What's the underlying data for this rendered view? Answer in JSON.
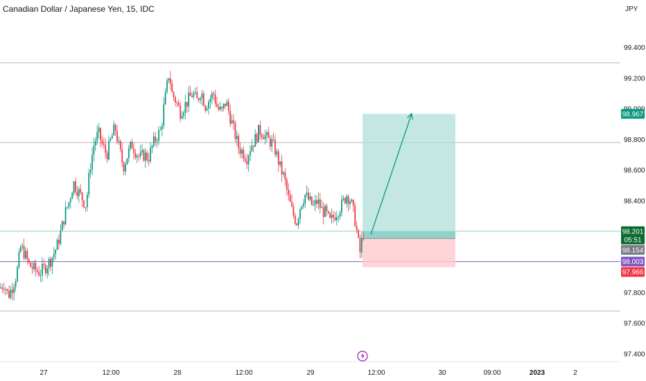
{
  "header": {
    "title": "Canadian Dollar / Japanese Yen, 15, IDC"
  },
  "axis": {
    "currency": "JPY"
  },
  "chart_data": {
    "type": "candlestick",
    "symbol": "CADJPY",
    "interval": "15",
    "ylim": [
      97.35,
      99.62
    ],
    "y_ticks": [
      "99.400",
      "99.200",
      "99.000",
      "98.800",
      "98.600",
      "98.400",
      "97.800",
      "97.600",
      "97.400"
    ],
    "x_ticks": [
      {
        "label": "27",
        "bold": false
      },
      {
        "label": "12:00",
        "bold": false
      },
      {
        "label": "28",
        "bold": false
      },
      {
        "label": "12:00",
        "bold": false
      },
      {
        "label": "29",
        "bold": false
      },
      {
        "label": "12:00",
        "bold": false
      },
      {
        "label": "30",
        "bold": false
      },
      {
        "label": "09:00",
        "bold": false
      },
      {
        "label": "2023",
        "bold": true
      },
      {
        "label": "2",
        "bold": false
      }
    ],
    "horizontal_lines": [
      {
        "price": 99.3,
        "color": "#b2b5be"
      },
      {
        "price": 98.78,
        "color": "#b2b5be"
      },
      {
        "price": 98.201,
        "color": "#9bcfa6"
      },
      {
        "price": 98.003,
        "color": "#7e57c2"
      },
      {
        "price": 97.68,
        "color": "#b2b5be"
      }
    ],
    "price_tags": [
      {
        "label": "98.967",
        "color": "#089981"
      },
      {
        "label": "98.201",
        "sub": "05:51",
        "color": "#0b6b2f"
      },
      {
        "label": "98.154",
        "color": "#787b86"
      },
      {
        "label": "98.003",
        "color": "#7e57c2"
      },
      {
        "label": "97.966",
        "color": "#f23645"
      }
    ],
    "position": {
      "type": "long",
      "entry": 98.154,
      "target": 98.967,
      "stop": 97.966
    },
    "colors": {
      "up": "#089981",
      "down": "#f23645",
      "profit_zone": "#b2dfdb",
      "loss_zone": "#fccbcd",
      "arrow": "#089981"
    },
    "path": [
      [
        0,
        97.83
      ],
      [
        6,
        97.86
      ],
      [
        12,
        97.78
      ],
      [
        18,
        97.84
      ],
      [
        24,
        97.92
      ],
      [
        30,
        98.1
      ],
      [
        36,
        98.05
      ],
      [
        42,
        97.98
      ],
      [
        50,
        97.95
      ],
      [
        58,
        97.93
      ],
      [
        66,
        97.97
      ],
      [
        74,
        98.02
      ],
      [
        82,
        98.1
      ],
      [
        88,
        98.2
      ],
      [
        94,
        98.32
      ],
      [
        100,
        98.4
      ],
      [
        106,
        98.52
      ],
      [
        112,
        98.47
      ],
      [
        118,
        98.42
      ],
      [
        124,
        98.37
      ],
      [
        130,
        98.62
      ],
      [
        136,
        98.78
      ],
      [
        142,
        98.84
      ],
      [
        148,
        98.76
      ],
      [
        154,
        98.7
      ],
      [
        160,
        98.8
      ],
      [
        166,
        98.88
      ],
      [
        172,
        98.74
      ],
      [
        178,
        98.62
      ],
      [
        184,
        98.7
      ],
      [
        190,
        98.77
      ],
      [
        196,
        98.72
      ],
      [
        202,
        98.68
      ],
      [
        208,
        98.7
      ],
      [
        214,
        98.68
      ],
      [
        220,
        98.76
      ],
      [
        226,
        98.82
      ],
      [
        232,
        98.86
      ],
      [
        236,
        99.0
      ],
      [
        240,
        99.12
      ],
      [
        244,
        99.24
      ],
      [
        248,
        99.1
      ],
      [
        254,
        99.05
      ],
      [
        260,
        98.98
      ],
      [
        266,
        99.02
      ],
      [
        272,
        99.06
      ],
      [
        278,
        99.1
      ],
      [
        284,
        99.05
      ],
      [
        290,
        99.12
      ],
      [
        296,
        99.02
      ],
      [
        302,
        99.06
      ],
      [
        308,
        99.1
      ],
      [
        314,
        99.0
      ],
      [
        320,
        98.98
      ],
      [
        326,
        99.05
      ],
      [
        332,
        98.95
      ],
      [
        338,
        98.85
      ],
      [
        344,
        98.75
      ],
      [
        350,
        98.72
      ],
      [
        356,
        98.68
      ],
      [
        362,
        98.76
      ],
      [
        368,
        98.8
      ],
      [
        374,
        98.86
      ],
      [
        380,
        98.84
      ],
      [
        386,
        98.8
      ],
      [
        392,
        98.78
      ],
      [
        398,
        98.72
      ],
      [
        404,
        98.62
      ],
      [
        410,
        98.55
      ],
      [
        416,
        98.42
      ],
      [
        422,
        98.32
      ],
      [
        428,
        98.26
      ],
      [
        434,
        98.38
      ],
      [
        440,
        98.44
      ],
      [
        446,
        98.4
      ],
      [
        452,
        98.36
      ],
      [
        458,
        98.4
      ],
      [
        464,
        98.34
      ],
      [
        470,
        98.32
      ],
      [
        476,
        98.26
      ],
      [
        482,
        98.3
      ],
      [
        488,
        98.34
      ],
      [
        494,
        98.38
      ],
      [
        500,
        98.44
      ],
      [
        506,
        98.4
      ],
      [
        512,
        98.28
      ],
      [
        516,
        98.16
      ],
      [
        519,
        98.05
      ],
      [
        522,
        98.14
      ],
      [
        525,
        98.2
      ]
    ]
  }
}
